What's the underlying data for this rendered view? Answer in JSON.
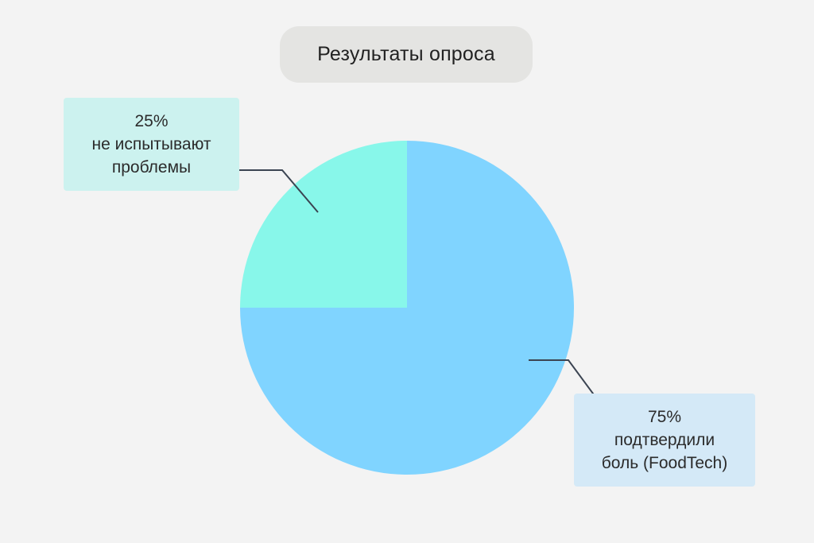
{
  "title": "Результаты опроса",
  "colors": {
    "background": "#f3f3f3",
    "title_pill": "#e4e4e2",
    "slice_major": "#80d4ff",
    "slice_minor": "#88f7ea",
    "leader_line": "#3b4452",
    "callout_minor_bg": "#ccf2ef",
    "callout_major_bg": "#d4e9f7"
  },
  "callouts": {
    "minor": {
      "percent": "25%",
      "line1": "не испытывают",
      "line2": "проблемы"
    },
    "major": {
      "percent": "75%",
      "line1": "подтвердили",
      "line2": "боль (FoodTech)"
    }
  },
  "chart_data": {
    "type": "pie",
    "title": "Результаты опроса",
    "slices": [
      {
        "label": "подтвердили боль (FoodTech)",
        "value": 75,
        "color": "#80d4ff"
      },
      {
        "label": "не испытывают проблемы",
        "value": 25,
        "color": "#88f7ea"
      }
    ],
    "start": "12 o'clock",
    "direction": "clockwise",
    "legend": "none",
    "labels": "callouts with leader lines"
  }
}
